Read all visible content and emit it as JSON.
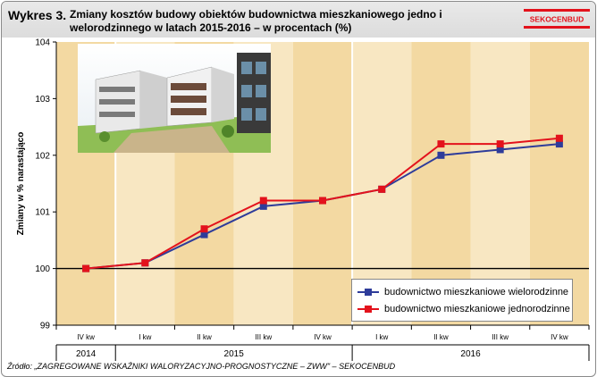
{
  "header": {
    "label": "Wykres 3.",
    "title": "Zmiany kosztów budowy obiektów budownictwa mieszkaniowego jedno i welorodzinnego w latach 2015-2016 – w procentach (%)",
    "logo_text": "SEKOCENBUD"
  },
  "source": "Źródło: „ZAGREGOWANE WSKAŹNIKI WALORYZACYJNO-PROGNOSTYCZNE – ZWW\" – SEKOCENBUD",
  "colors": {
    "series_multi": "#2e3c9a",
    "series_single": "#e3121c",
    "band_dark": "#f3d9a2",
    "band_light": "#f8e7c2",
    "logo_red": "#e3121c"
  },
  "chart_data": {
    "type": "line",
    "ylabel": "Zmiany w % narastająco",
    "ylim": [
      99,
      104
    ],
    "yticks": [
      "99",
      "100",
      "101",
      "102",
      "103",
      "104"
    ],
    "baseline": 100,
    "categories": [
      "IV kw",
      "I kw",
      "II kw",
      "III kw",
      "IV kw",
      "I kw",
      "II kw",
      "III kw",
      "IV kw"
    ],
    "years": [
      {
        "label": "2014",
        "count": 1
      },
      {
        "label": "2015",
        "count": 4
      },
      {
        "label": "2016",
        "count": 4
      }
    ],
    "grid": false,
    "legend_position": "bottom-right",
    "series": [
      {
        "name": "budownictwo mieszkaniowe wielorodzinne",
        "color": "#2e3c9a",
        "values": [
          100.0,
          100.1,
          100.6,
          101.1,
          101.2,
          101.4,
          102.0,
          102.1,
          102.2
        ]
      },
      {
        "name": "budownictwo mieszkaniowe jednorodzinne",
        "color": "#e3121c",
        "values": [
          100.0,
          100.1,
          100.7,
          101.2,
          101.2,
          101.4,
          102.2,
          102.2,
          102.3
        ]
      }
    ]
  }
}
